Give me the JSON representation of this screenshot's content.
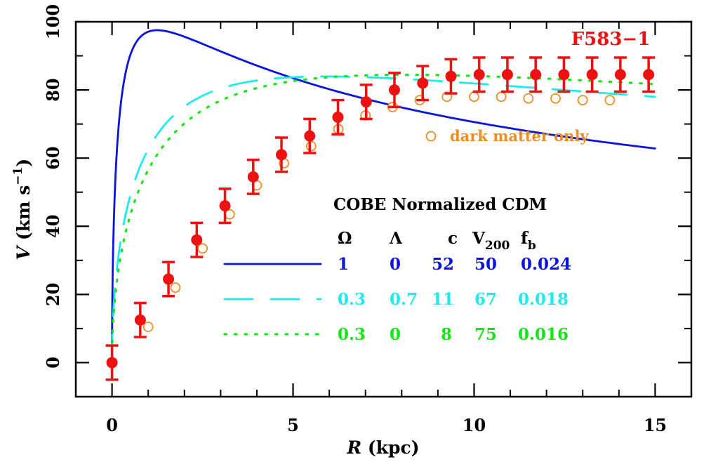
{
  "chart_data": {
    "type": "scatter",
    "title": "F583−1",
    "xlabel": {
      "var": "R",
      "unit": " (kpc)"
    },
    "ylabel": {
      "var": "V",
      "unit_pre": " (km s",
      "unit_sup": "−1",
      "unit_post": ")"
    },
    "xlim": [
      -1,
      16
    ],
    "ylim": [
      -10,
      100
    ],
    "xticks": [
      0,
      5,
      10,
      15
    ],
    "xtick_labels": [
      "0",
      "5",
      "10",
      "15"
    ],
    "yticks": [
      0,
      20,
      40,
      60,
      80,
      100
    ],
    "ytick_labels": [
      "0",
      "20",
      "40",
      "60",
      "80",
      "100"
    ],
    "grid": false,
    "colors": {
      "data": "#ee1111",
      "dark_matter": "#f08c1e",
      "omega1": "#0a14dc",
      "lambda": "#1eebeb",
      "open": "#14e614"
    },
    "observed": {
      "name": "F583−1",
      "x": [
        0,
        0.78,
        1.56,
        2.34,
        3.12,
        3.9,
        4.68,
        5.46,
        6.24,
        7.02,
        7.8,
        8.58,
        9.36,
        10.14,
        10.92,
        11.7,
        12.48,
        13.26,
        14.04,
        14.82
      ],
      "y": [
        0,
        12.5,
        24.5,
        36,
        46,
        54.5,
        61,
        66.5,
        72,
        76.5,
        80,
        82,
        84,
        84.5,
        84.5,
        84.5,
        84.5,
        84.5,
        84.5,
        84.5
      ],
      "yerr": [
        5,
        5,
        5,
        5,
        5,
        5,
        5,
        5,
        5,
        5,
        5,
        5,
        5,
        5,
        5,
        5,
        5,
        5,
        5,
        5
      ]
    },
    "dark_matter_only": {
      "name": "dark matter only",
      "x": [
        1,
        1.75,
        2.5,
        3.25,
        4,
        4.75,
        5.5,
        6.25,
        7,
        7.75,
        8.5,
        9.25,
        10,
        10.75,
        11.5,
        12.25,
        13,
        13.75
      ],
      "y": [
        10.5,
        22,
        33.5,
        43.5,
        52,
        58.5,
        63.5,
        68.5,
        72.5,
        75,
        77,
        78,
        78,
        78,
        77.5,
        77.5,
        77,
        77
      ]
    },
    "legend": {
      "heading": "COBE Normalized CDM",
      "columns": [
        "Ω",
        "Λ",
        "c",
        "V",
        "f"
      ],
      "column_subscripts": [
        "",
        "",
        "",
        "200",
        "b"
      ],
      "rows": [
        {
          "style": "solid",
          "values": [
            "1",
            "0",
            "52",
            "50",
            "0.024"
          ]
        },
        {
          "style": "dashed",
          "values": [
            "0.3",
            "0.7",
            "11",
            "67",
            "0.018"
          ]
        },
        {
          "style": "dotted",
          "values": [
            "0.3",
            "0",
            "8",
            "75",
            "0.016"
          ]
        }
      ]
    },
    "models": [
      {
        "style": "solid",
        "color_key": "omega1",
        "c": 52,
        "v200": 50,
        "vmax": 97
      },
      {
        "style": "dashed",
        "color_key": "lambda",
        "c": 11,
        "v200": 67,
        "vmax": 83.5
      },
      {
        "style": "dotted",
        "color_key": "open",
        "c": 8,
        "v200": 75,
        "vmax": 84
      }
    ]
  }
}
